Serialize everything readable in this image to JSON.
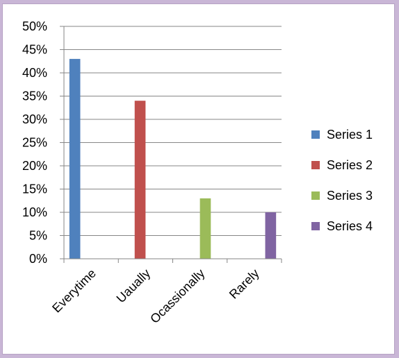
{
  "chart_data": {
    "type": "bar",
    "categories": [
      "Everytime",
      "Uaually",
      "Ocassionally",
      "Rarely"
    ],
    "series": [
      {
        "name": "Series 1",
        "values": [
          43,
          null,
          null,
          null
        ],
        "color": "#4f81bd"
      },
      {
        "name": "Series 2",
        "values": [
          null,
          34,
          null,
          null
        ],
        "color": "#c0504d"
      },
      {
        "name": "Series 3",
        "values": [
          null,
          null,
          13,
          null
        ],
        "color": "#9bbb59"
      },
      {
        "name": "Series 4",
        "values": [
          null,
          null,
          null,
          10
        ],
        "color": "#8064a2"
      }
    ],
    "title": "",
    "xlabel": "",
    "ylabel": "",
    "ylim": [
      0,
      50
    ],
    "ytick_step": 5,
    "ytick_format": "percent",
    "grid": true,
    "legend_position": "right"
  },
  "colors": {
    "background_outer": "#c9b6d6",
    "plot_background": "#ffffff",
    "gridline": "#868686"
  }
}
